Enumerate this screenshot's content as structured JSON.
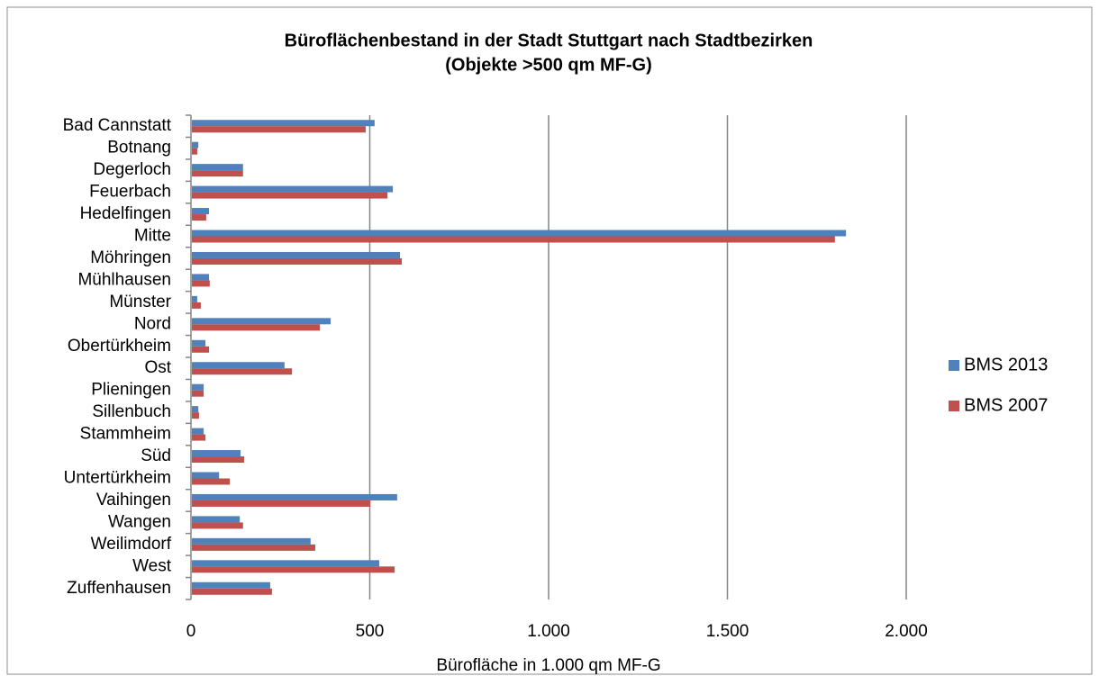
{
  "chart_data": {
    "type": "bar",
    "orientation": "horizontal",
    "title": "Büroflächenbestand in der Stadt Stuttgart nach Stadtbezirken",
    "subtitle": "(Objekte >500 qm MF-G)",
    "x_label": "Bürofläche in 1.000 qm MF-G",
    "categories": [
      "Bad Cannstatt",
      "Botnang",
      "Degerloch",
      "Feuerbach",
      "Hedelfingen",
      "Mitte",
      "Möhringen",
      "Mühlhausen",
      "Münster",
      "Nord",
      "Obertürkheim",
      "Ost",
      "Plieningen",
      "Sillenbuch",
      "Stammheim",
      "Süd",
      "Untertürkheim",
      "Vaihingen",
      "Wangen",
      "Weilimdorf",
      "West",
      "Zuffenhausen"
    ],
    "series": [
      {
        "name": "BMS 2013",
        "color": "#4f81bd",
        "values": [
          511,
          18,
          143,
          562,
          48,
          1829,
          582,
          48,
          15,
          388,
          38,
          259,
          33,
          18,
          33,
          136,
          76,
          574,
          134,
          332,
          524,
          219
        ]
      },
      {
        "name": "BMS 2007",
        "color": "#c0504d",
        "values": [
          486,
          15,
          143,
          547,
          40,
          1798,
          587,
          50,
          25,
          358,
          48,
          280,
          33,
          20,
          38,
          146,
          106,
          499,
          143,
          345,
          567,
          224
        ]
      }
    ],
    "xlim": [
      0,
      2000
    ],
    "xticks": [
      0,
      500,
      {
        "value": 1000,
        "label": "1.000"
      },
      {
        "value": 1500,
        "label": "1.500"
      },
      {
        "value": 2000,
        "label": "2.000"
      }
    ],
    "grid": true,
    "legend": "right"
  }
}
